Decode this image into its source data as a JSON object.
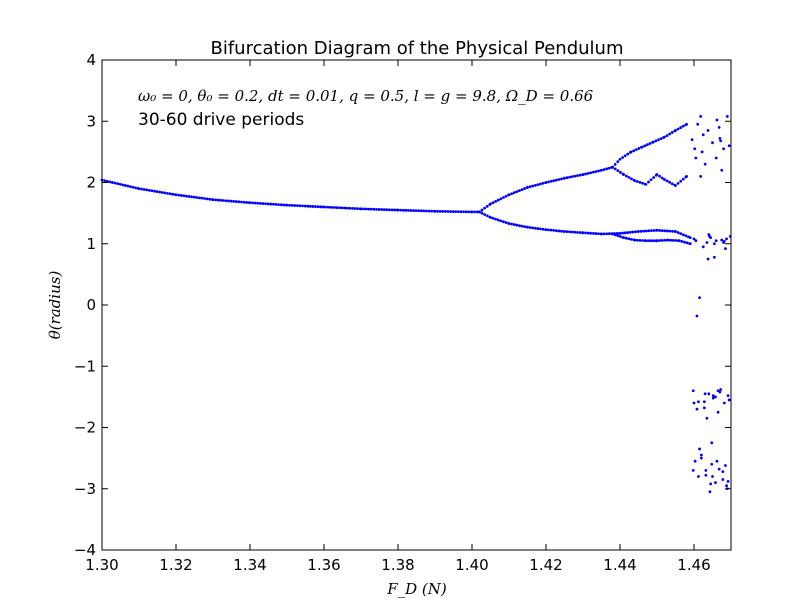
{
  "chart_data": {
    "type": "scatter",
    "title": "Bifurcation Diagram of the Physical Pendulum",
    "xlabel": "F_D (N)",
    "ylabel": "θ(radius)",
    "xlim": [
      1.3,
      1.47
    ],
    "ylim": [
      -4,
      4
    ],
    "x_ticks": [
      "1.30",
      "1.32",
      "1.34",
      "1.36",
      "1.38",
      "1.40",
      "1.42",
      "1.44",
      "1.46"
    ],
    "y_ticks": [
      "4",
      "3",
      "2",
      "1",
      "0",
      "−1",
      "−2",
      "−3",
      "−4"
    ],
    "grid": false,
    "marker_color": "#0000ff",
    "annotations": [
      "ω₀ = 0, θ₀ = 0.2, dt = 0.01, q = 0.5, l = g = 9.8, Ω_D = 0.66",
      "30-60 drive periods"
    ],
    "series": [
      {
        "branch": "single",
        "x": [
          1.3,
          1.31,
          1.32,
          1.33,
          1.34,
          1.35,
          1.36,
          1.37,
          1.38,
          1.39,
          1.4,
          1.402
        ],
        "y": [
          2.04,
          1.9,
          1.8,
          1.72,
          1.67,
          1.63,
          1.6,
          1.57,
          1.55,
          1.53,
          1.52,
          1.52
        ]
      },
      {
        "branch": "period-2 upper",
        "x": [
          1.402,
          1.405,
          1.41,
          1.415,
          1.42,
          1.425,
          1.43,
          1.435,
          1.438
        ],
        "y": [
          1.52,
          1.65,
          1.8,
          1.92,
          2.0,
          2.07,
          2.13,
          2.2,
          2.25
        ]
      },
      {
        "branch": "period-2 lower",
        "x": [
          1.402,
          1.405,
          1.41,
          1.415,
          1.42,
          1.425,
          1.43,
          1.435,
          1.44,
          1.445,
          1.45,
          1.455,
          1.459
        ],
        "y": [
          1.52,
          1.43,
          1.33,
          1.27,
          1.23,
          1.2,
          1.18,
          1.16,
          1.17,
          1.2,
          1.22,
          1.2,
          1.1
        ]
      },
      {
        "branch": "period-4 upper a",
        "x": [
          1.438,
          1.44,
          1.443,
          1.446,
          1.449,
          1.452,
          1.455,
          1.458
        ],
        "y": [
          2.25,
          2.38,
          2.5,
          2.58,
          2.66,
          2.74,
          2.85,
          2.95
        ]
      },
      {
        "branch": "period-4 upper b",
        "x": [
          1.438,
          1.441,
          1.444,
          1.447,
          1.45,
          1.452,
          1.455,
          1.458
        ],
        "y": [
          2.25,
          2.13,
          2.03,
          1.97,
          2.13,
          2.05,
          1.95,
          2.1
        ]
      },
      {
        "branch": "period-4 lower b",
        "x": [
          1.438,
          1.441,
          1.444,
          1.447,
          1.45,
          1.453,
          1.456,
          1.459
        ],
        "y": [
          1.16,
          1.1,
          1.06,
          1.05,
          1.05,
          1.06,
          1.05,
          1.0
        ]
      },
      {
        "branch": "chaotic band",
        "x": [
          1.4595,
          1.4598,
          1.46,
          1.4603,
          1.4605,
          1.4608,
          1.4612,
          1.4615,
          1.4618,
          1.462,
          1.4625,
          1.4628,
          1.463,
          1.4632,
          1.4635,
          1.4638,
          1.464,
          1.4643,
          1.4645,
          1.4648,
          1.465,
          1.4652,
          1.4655,
          1.4658,
          1.466,
          1.4662,
          1.4665,
          1.4668,
          1.467,
          1.4672,
          1.4675,
          1.4678,
          1.468,
          1.4682,
          1.4685,
          1.4688,
          1.469,
          1.4692,
          1.4695,
          1.4698,
          1.46,
          1.461,
          1.462,
          1.463,
          1.464,
          1.465,
          1.466,
          1.467,
          1.468,
          1.469,
          1.4598,
          1.4608,
          1.4618,
          1.4628,
          1.4638,
          1.4648,
          1.4658,
          1.4668,
          1.4678,
          1.4688,
          1.4605,
          1.4615,
          1.4625,
          1.4635,
          1.4645,
          1.4655,
          1.4665,
          1.4675,
          1.4685,
          1.4695,
          1.4612,
          1.4622,
          1.4632,
          1.4642,
          1.4652,
          1.4662,
          1.4672,
          1.4682,
          1.4692,
          1.4602
        ],
        "y": [
          2.7,
          -1.4,
          1.08,
          -2.55,
          2.4,
          -1.7,
          -2.8,
          0.12,
          3.08,
          -2.45,
          0.95,
          -1.58,
          2.3,
          -2.7,
          1.02,
          2.85,
          -1.45,
          -3.05,
          1.1,
          -2.25,
          2.65,
          -1.52,
          0.78,
          -2.9,
          1.05,
          3.02,
          -1.75,
          -2.68,
          2.72,
          -1.38,
          1.06,
          -2.85,
          2.55,
          -1.6,
          0.92,
          -2.95,
          3.08,
          -1.48,
          2.6,
          1.12,
          -1.6,
          2.95,
          -2.5,
          -1.45,
          1.15,
          -2.8,
          2.4,
          -1.42,
          1.02,
          -3.0,
          -2.7,
          -0.18,
          2.1,
          -1.68,
          0.75,
          -2.6,
          -1.5,
          2.9,
          -2.72,
          1.08,
          1.05,
          -2.35,
          2.78,
          -1.85,
          -2.92,
          1.0,
          -1.4,
          2.2,
          -2.62,
          -1.55,
          -1.58,
          2.5,
          -2.78,
          1.12,
          -1.48,
          -2.55,
          2.68,
          1.04,
          -2.88,
          2.55
        ]
      }
    ]
  }
}
